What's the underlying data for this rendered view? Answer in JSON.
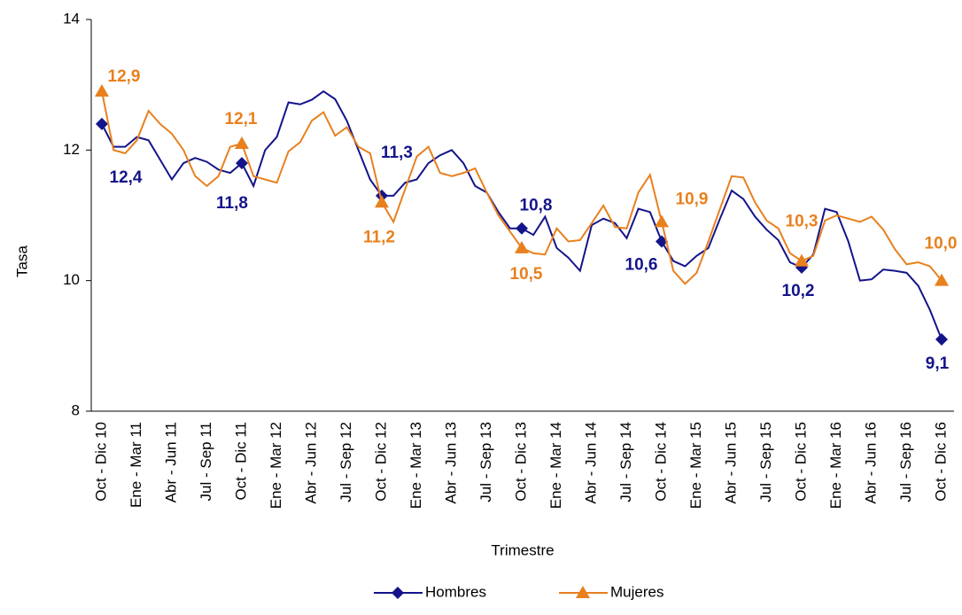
{
  "chart_data": {
    "type": "line",
    "x_label": "Trimestre",
    "y_label": "Tasa",
    "categories": [
      "Oct - Dic 10",
      null,
      null,
      "Ene - Mar 11",
      null,
      null,
      "Abr - Jun 11",
      null,
      null,
      "Jul - Sep 11",
      null,
      null,
      "Oct - Dic 11",
      null,
      null,
      "Ene - Mar 12",
      null,
      null,
      "Abr - Jun 12",
      null,
      null,
      "Jul - Sep 12",
      null,
      null,
      "Oct - Dic 12",
      null,
      null,
      "Ene - Mar 13",
      null,
      null,
      "Abr - Jun 13",
      null,
      null,
      "Jul - Sep 13",
      null,
      null,
      "Oct - Dic 13",
      null,
      null,
      "Ene - Mar 14",
      null,
      null,
      "Abr - Jun 14",
      null,
      null,
      "Jul - Sep 14",
      null,
      null,
      "Oct - Dic 14",
      null,
      null,
      "Ene - Mar 15",
      null,
      null,
      "Abr - Jun 15",
      null,
      null,
      "Jul - Sep 15",
      null,
      null,
      "Oct - Dic 15",
      null,
      null,
      "Ene - Mar 16",
      null,
      null,
      "Abr - Jun 16",
      null,
      null,
      "Jul - Sep 16",
      null,
      null,
      "Oct - Dic 16"
    ],
    "series": [
      {
        "name": "Hombres",
        "color": "#14148a",
        "marker": "diamond",
        "values": [
          12.4,
          12.05,
          12.05,
          12.2,
          12.15,
          11.85,
          11.55,
          11.8,
          11.88,
          11.82,
          11.7,
          11.65,
          11.8,
          11.45,
          12.0,
          12.2,
          12.73,
          12.7,
          12.77,
          12.9,
          12.78,
          12.45,
          12.0,
          11.55,
          11.3,
          11.3,
          11.5,
          11.55,
          11.8,
          11.92,
          12.0,
          11.8,
          11.45,
          11.35,
          11.05,
          10.8,
          10.8,
          10.7,
          10.98,
          10.5,
          10.35,
          10.15,
          10.85,
          10.95,
          10.88,
          10.65,
          11.1,
          11.05,
          10.6,
          10.3,
          10.22,
          10.38,
          10.5,
          10.95,
          11.38,
          11.25,
          10.98,
          10.78,
          10.62,
          10.28,
          10.2,
          10.4,
          11.1,
          11.05,
          10.6,
          10.0,
          10.02,
          10.17,
          10.15,
          10.12,
          9.92,
          9.55,
          9.1
        ],
        "value_labels": [
          "12,4",
          null,
          null,
          null,
          null,
          null,
          null,
          null,
          null,
          null,
          null,
          null,
          "11,8",
          null,
          null,
          null,
          null,
          null,
          null,
          null,
          null,
          null,
          null,
          null,
          "11,3",
          null,
          null,
          null,
          null,
          null,
          null,
          null,
          null,
          null,
          null,
          null,
          "10,8",
          null,
          null,
          null,
          null,
          null,
          null,
          null,
          null,
          null,
          null,
          null,
          "10,6",
          null,
          null,
          null,
          null,
          null,
          null,
          null,
          null,
          null,
          null,
          null,
          "10,2",
          null,
          null,
          null,
          null,
          null,
          null,
          null,
          null,
          null,
          null,
          null,
          "9,1"
        ]
      },
      {
        "name": "Mujeres",
        "color": "#e8801e",
        "marker": "triangle",
        "values": [
          12.9,
          12.0,
          11.95,
          12.15,
          12.6,
          12.4,
          12.25,
          12.0,
          11.6,
          11.45,
          11.6,
          12.05,
          12.1,
          11.6,
          11.55,
          11.5,
          11.98,
          12.12,
          12.45,
          12.58,
          12.22,
          12.35,
          12.05,
          11.95,
          11.2,
          10.9,
          11.4,
          11.9,
          12.05,
          11.65,
          11.6,
          11.65,
          11.72,
          11.35,
          11.0,
          10.75,
          10.5,
          10.42,
          10.4,
          10.8,
          10.6,
          10.62,
          10.88,
          11.15,
          10.82,
          10.8,
          11.35,
          11.62,
          10.9,
          10.15,
          9.95,
          10.12,
          10.6,
          11.1,
          11.6,
          11.58,
          11.2,
          10.92,
          10.8,
          10.42,
          10.3,
          10.38,
          10.92,
          11.0,
          10.95,
          10.9,
          10.98,
          10.78,
          10.48,
          10.25,
          10.28,
          10.22,
          10.0
        ],
        "value_labels": [
          "12,9",
          null,
          null,
          null,
          null,
          null,
          null,
          null,
          null,
          null,
          null,
          null,
          "12,1",
          null,
          null,
          null,
          null,
          null,
          null,
          null,
          null,
          null,
          null,
          null,
          "11,2",
          null,
          null,
          null,
          null,
          null,
          null,
          null,
          null,
          null,
          null,
          null,
          "10,5",
          null,
          null,
          null,
          null,
          null,
          null,
          null,
          null,
          null,
          null,
          null,
          "10,9",
          null,
          null,
          null,
          null,
          null,
          null,
          null,
          null,
          null,
          null,
          null,
          "10,3",
          null,
          null,
          null,
          null,
          null,
          null,
          null,
          null,
          null,
          null,
          null,
          "10,0"
        ]
      }
    ],
    "ylim": [
      8,
      14
    ],
    "yticks": [
      8,
      10,
      12,
      14
    ],
    "grid": false,
    "legend": "bottom"
  }
}
